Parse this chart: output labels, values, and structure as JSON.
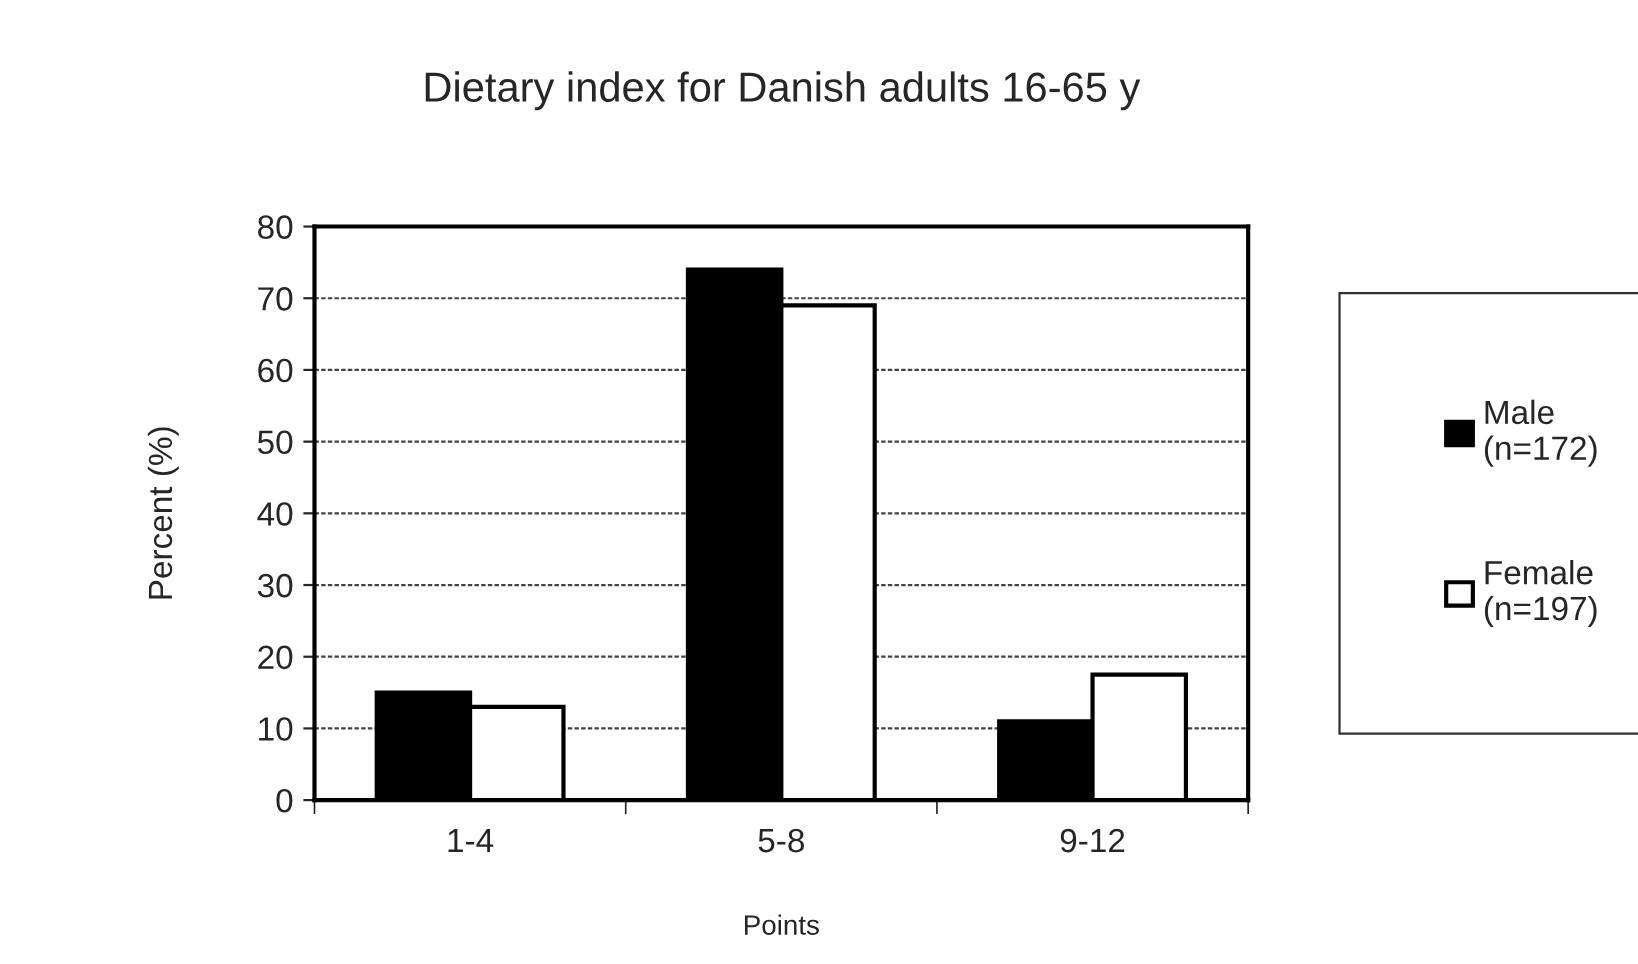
{
  "chart_data": {
    "type": "bar",
    "title": "Dietary index for Danish adults 16-65 y",
    "xlabel": "Points",
    "ylabel": "Percent (%)",
    "categories": [
      "1-4",
      "5-8",
      "9-12"
    ],
    "series": [
      {
        "name": "Male\n(n=172)",
        "color": "#000000",
        "values": [
          15,
          74,
          11
        ]
      },
      {
        "name": "Female\n(n=197)",
        "color": "#ffffff",
        "values": [
          13,
          69,
          17.5
        ]
      }
    ],
    "ylim": [
      0,
      80
    ],
    "yticks": [
      0,
      10,
      20,
      30,
      40,
      50,
      60,
      70,
      80
    ],
    "grid": "y",
    "legend": "right"
  }
}
